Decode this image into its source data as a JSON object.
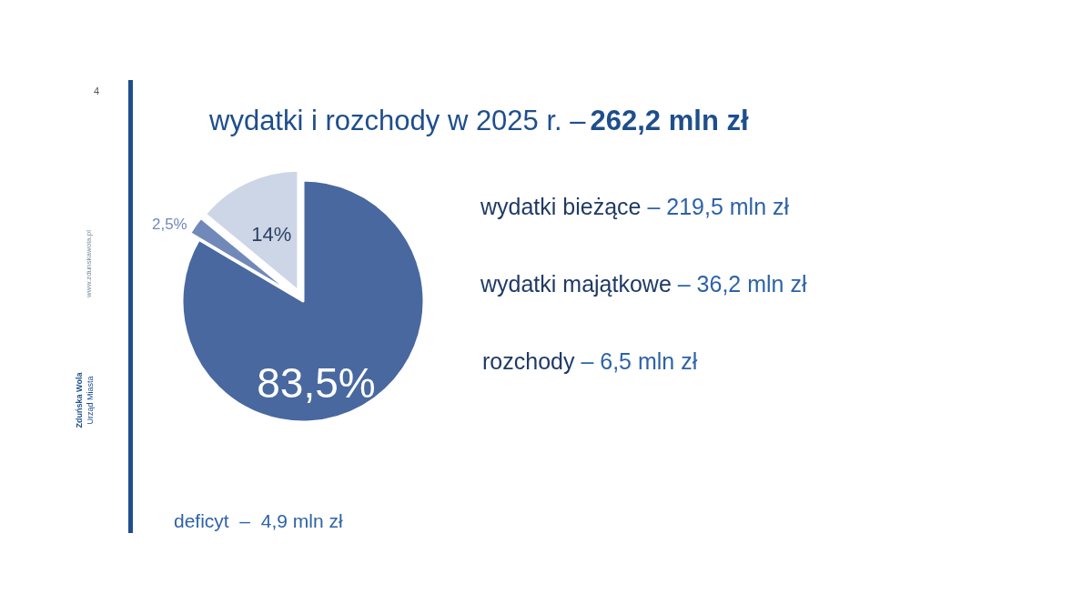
{
  "chart_data": {
    "type": "pie",
    "title": "wydatki i rozchody w 2025 r. –",
    "subtitle": "262,2 mln zł",
    "categories": [
      null,
      null,
      null
    ],
    "values": [
      83.5,
      2.5,
      14
    ],
    "colors": [
      "#48689f",
      "#7189b8",
      "#cdd6e6"
    ],
    "value_labels": [
      "83,5%",
      "2,5%",
      "14%"
    ],
    "annotations": [
      "wydatki bieżące – 219,5 mln zł",
      "wydatki majątkowe – 36,2 mln zł",
      "rozchody – 6,5 mln zł",
      "deficyt  –  4,9 mln zł",
      "4",
      "www.zdunskawola.pl",
      "Zduńska Wola",
      "Urząd Miasta"
    ]
  }
}
